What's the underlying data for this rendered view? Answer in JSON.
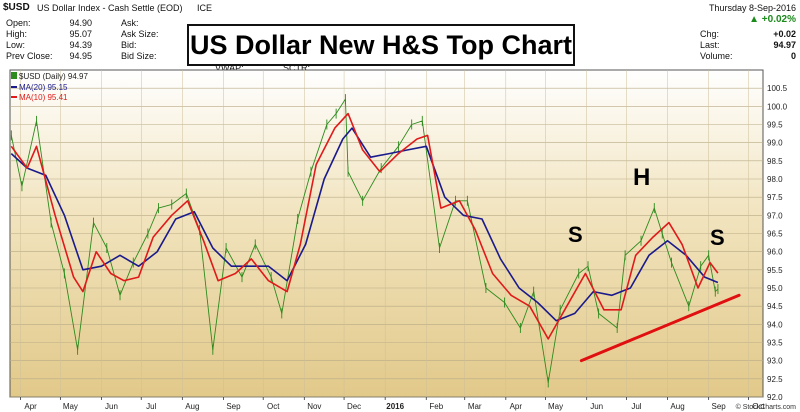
{
  "header": {
    "symbol": "$USD",
    "name": "US Dollar Index - Cash Settle (EOD)",
    "exchange": "ICE",
    "date": "Thursday  8-Sep-2016",
    "change_pct": "▲ +0.02%",
    "left_labels": [
      "Open:",
      "High:",
      "Low:",
      "Prev Close:"
    ],
    "left_values": [
      "94.90",
      "95.07",
      "94.39",
      "94.95"
    ],
    "mid_labels": [
      "Ask:",
      "Ask Size:",
      "Bid:",
      "Bid Size:"
    ],
    "vwap_label": "VWAP:",
    "sctr_label": "SCTR:",
    "right_labels": [
      "Chg:",
      "Last:",
      "Volume:"
    ],
    "right_values": [
      "+0.02",
      "94.97",
      "0"
    ],
    "watermark": "© StockCharts.com"
  },
  "chart_title": "US Dollar New H&S Top Chart",
  "legend": {
    "price": "$USD (Daily) 94.97",
    "ma20": "MA(20) 95.15",
    "ma10": "MA(10) 95.41"
  },
  "annotations": {
    "left_shoulder": "S",
    "head": "H",
    "right_shoulder": "S"
  },
  "colors": {
    "price": "#2e8b1e",
    "ma20": "#1a1a8c",
    "ma10": "#e01a1a",
    "neckline": "#e01010",
    "bg_top": "#ffffff",
    "bg_mid": "#e9d29a"
  },
  "chart_data": {
    "type": "line",
    "title": "US Dollar New H&S Top Chart",
    "x_ticks": [
      "Apr",
      "May",
      "Jun",
      "Jul",
      "Aug",
      "Sep",
      "Oct",
      "Nov",
      "Dec",
      "2016",
      "Feb",
      "Mar",
      "Apr",
      "May",
      "Jun",
      "Jul",
      "Aug",
      "Sep",
      "Oct"
    ],
    "y_ticks": [
      "100.5",
      "100.0",
      "99.5",
      "99.0",
      "98.5",
      "98.0",
      "97.5",
      "97.0",
      "96.5",
      "96.0",
      "95.5",
      "95.0",
      "94.5",
      "94.0",
      "93.5",
      "93.0",
      "92.5",
      "92.0"
    ],
    "ylim": [
      92.0,
      101.0
    ],
    "x_range": [
      "2015-03-24",
      "2016-10-12"
    ],
    "series": [
      {
        "name": "$USD (Daily) 94.97",
        "points": [
          [
            "2015-03-25",
            99.2
          ],
          [
            "2015-04-02",
            97.8
          ],
          [
            "2015-04-13",
            99.6
          ],
          [
            "2015-04-24",
            96.8
          ],
          [
            "2015-05-04",
            95.4
          ],
          [
            "2015-05-14",
            93.3
          ],
          [
            "2015-05-26",
            96.8
          ],
          [
            "2015-06-05",
            96.1
          ],
          [
            "2015-06-15",
            94.8
          ],
          [
            "2015-06-25",
            95.7
          ],
          [
            "2015-07-06",
            96.5
          ],
          [
            "2015-07-14",
            97.2
          ],
          [
            "2015-07-24",
            97.3
          ],
          [
            "2015-08-04",
            97.6
          ],
          [
            "2015-08-14",
            96.6
          ],
          [
            "2015-08-24",
            93.3
          ],
          [
            "2015-09-03",
            96.1
          ],
          [
            "2015-09-15",
            95.3
          ],
          [
            "2015-09-25",
            96.2
          ],
          [
            "2015-10-07",
            95.3
          ],
          [
            "2015-10-15",
            94.3
          ],
          [
            "2015-10-27",
            96.9
          ],
          [
            "2015-11-06",
            98.2
          ],
          [
            "2015-11-18",
            99.5
          ],
          [
            "2015-11-25",
            99.8
          ],
          [
            "2015-12-02",
            100.2
          ],
          [
            "2015-12-04",
            98.2
          ],
          [
            "2015-12-15",
            97.4
          ],
          [
            "2015-12-29",
            98.3
          ],
          [
            "2016-01-11",
            98.9
          ],
          [
            "2016-01-21",
            99.5
          ],
          [
            "2016-01-29",
            99.6
          ],
          [
            "2016-02-11",
            96.1
          ],
          [
            "2016-02-23",
            97.4
          ],
          [
            "2016-03-03",
            97.4
          ],
          [
            "2016-03-17",
            95.0
          ],
          [
            "2016-03-31",
            94.6
          ],
          [
            "2016-04-12",
            93.9
          ],
          [
            "2016-04-22",
            94.9
          ],
          [
            "2016-05-03",
            92.4
          ],
          [
            "2016-05-12",
            94.4
          ],
          [
            "2016-05-26",
            95.4
          ],
          [
            "2016-06-02",
            95.6
          ],
          [
            "2016-06-10",
            94.3
          ],
          [
            "2016-06-24",
            93.9
          ],
          [
            "2016-06-30",
            95.9
          ],
          [
            "2016-07-12",
            96.3
          ],
          [
            "2016-07-22",
            97.2
          ],
          [
            "2016-07-28",
            96.5
          ],
          [
            "2016-08-04",
            95.7
          ],
          [
            "2016-08-17",
            94.5
          ],
          [
            "2016-08-26",
            95.6
          ],
          [
            "2016-09-01",
            95.9
          ],
          [
            "2016-09-06",
            94.9
          ],
          [
            "2016-09-08",
            94.97
          ]
        ]
      },
      {
        "name": "MA(20) 95.15",
        "points": [
          [
            "2015-03-25",
            98.7
          ],
          [
            "2015-04-06",
            98.3
          ],
          [
            "2015-04-20",
            98.1
          ],
          [
            "2015-05-04",
            97.0
          ],
          [
            "2015-05-18",
            95.5
          ],
          [
            "2015-06-01",
            95.6
          ],
          [
            "2015-06-15",
            95.9
          ],
          [
            "2015-06-29",
            95.6
          ],
          [
            "2015-07-13",
            96.0
          ],
          [
            "2015-07-27",
            96.9
          ],
          [
            "2015-08-10",
            97.1
          ],
          [
            "2015-08-24",
            96.1
          ],
          [
            "2015-09-07",
            95.6
          ],
          [
            "2015-09-21",
            95.6
          ],
          [
            "2015-10-05",
            95.6
          ],
          [
            "2015-10-19",
            95.2
          ],
          [
            "2015-11-02",
            96.2
          ],
          [
            "2015-11-16",
            98.0
          ],
          [
            "2015-11-30",
            99.1
          ],
          [
            "2015-12-07",
            99.4
          ],
          [
            "2015-12-21",
            98.6
          ],
          [
            "2016-01-04",
            98.7
          ],
          [
            "2016-01-18",
            98.8
          ],
          [
            "2016-02-01",
            98.9
          ],
          [
            "2016-02-15",
            97.5
          ],
          [
            "2016-02-29",
            97.0
          ],
          [
            "2016-03-14",
            96.9
          ],
          [
            "2016-03-28",
            95.8
          ],
          [
            "2016-04-11",
            95.0
          ],
          [
            "2016-04-25",
            94.6
          ],
          [
            "2016-05-09",
            94.1
          ],
          [
            "2016-05-23",
            94.3
          ],
          [
            "2016-06-06",
            94.9
          ],
          [
            "2016-06-20",
            94.8
          ],
          [
            "2016-07-04",
            95.0
          ],
          [
            "2016-07-18",
            95.9
          ],
          [
            "2016-08-01",
            96.3
          ],
          [
            "2016-08-15",
            95.9
          ],
          [
            "2016-08-29",
            95.3
          ],
          [
            "2016-09-08",
            95.15
          ]
        ]
      },
      {
        "name": "MA(10) 95.41",
        "points": [
          [
            "2015-03-25",
            98.9
          ],
          [
            "2015-04-06",
            98.3
          ],
          [
            "2015-04-13",
            98.9
          ],
          [
            "2015-04-27",
            97.0
          ],
          [
            "2015-05-11",
            95.3
          ],
          [
            "2015-05-18",
            94.9
          ],
          [
            "2015-05-28",
            96.0
          ],
          [
            "2015-06-08",
            95.4
          ],
          [
            "2015-06-18",
            95.2
          ],
          [
            "2015-06-29",
            95.3
          ],
          [
            "2015-07-10",
            96.4
          ],
          [
            "2015-07-24",
            97.0
          ],
          [
            "2015-08-05",
            97.4
          ],
          [
            "2015-08-17",
            96.3
          ],
          [
            "2015-08-28",
            95.2
          ],
          [
            "2015-09-10",
            95.4
          ],
          [
            "2015-09-22",
            95.8
          ],
          [
            "2015-10-05",
            95.2
          ],
          [
            "2015-10-19",
            94.9
          ],
          [
            "2015-10-29",
            96.2
          ],
          [
            "2015-11-10",
            98.4
          ],
          [
            "2015-11-24",
            99.4
          ],
          [
            "2015-12-04",
            99.8
          ],
          [
            "2015-12-15",
            98.8
          ],
          [
            "2015-12-28",
            98.2
          ],
          [
            "2016-01-11",
            98.7
          ],
          [
            "2016-01-25",
            99.1
          ],
          [
            "2016-02-02",
            99.2
          ],
          [
            "2016-02-12",
            97.2
          ],
          [
            "2016-02-26",
            97.4
          ],
          [
            "2016-03-09",
            96.6
          ],
          [
            "2016-03-22",
            95.4
          ],
          [
            "2016-04-05",
            94.8
          ],
          [
            "2016-04-19",
            94.5
          ],
          [
            "2016-05-03",
            93.6
          ],
          [
            "2016-05-17",
            94.5
          ],
          [
            "2016-05-31",
            95.4
          ],
          [
            "2016-06-14",
            94.4
          ],
          [
            "2016-06-27",
            94.4
          ],
          [
            "2016-07-08",
            95.9
          ],
          [
            "2016-07-21",
            96.4
          ],
          [
            "2016-08-02",
            96.8
          ],
          [
            "2016-08-12",
            96.2
          ],
          [
            "2016-08-24",
            95.0
          ],
          [
            "2016-09-02",
            95.7
          ],
          [
            "2016-09-08",
            95.41
          ]
        ]
      }
    ],
    "neckline": [
      [
        "2016-05-28",
        93.0
      ],
      [
        "2016-09-24",
        94.8
      ]
    ]
  }
}
